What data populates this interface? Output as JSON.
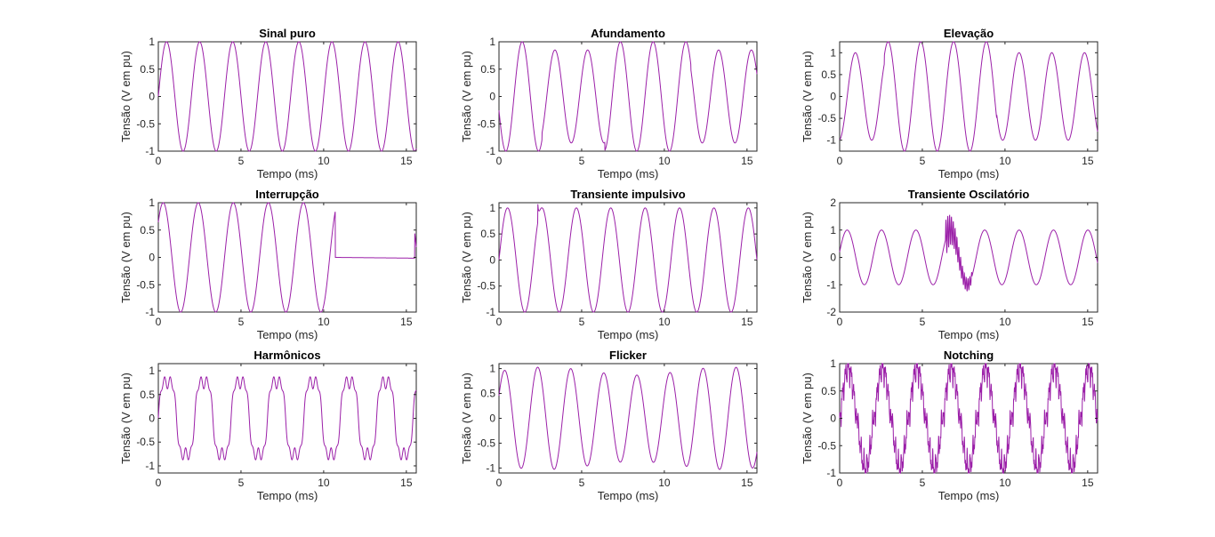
{
  "colors": {
    "trace": "#9b1fa8",
    "axis": "#262626",
    "background": "#ffffff"
  },
  "chart_data": [
    {
      "type": "line",
      "title": "Sinal puro",
      "kind": "puro",
      "xlabel": "Tempo (ms)",
      "ylabel": "Tensão (V em pu)",
      "xlim": [
        0,
        15.6
      ],
      "ylim": [
        -1,
        1
      ],
      "xticks": [
        0,
        5,
        10,
        15
      ],
      "yticks": [
        -1,
        -0.5,
        0,
        0.5,
        1
      ],
      "ytick_labels": [
        "-1",
        "-0.5",
        "0",
        "0.5",
        "1"
      ],
      "cycle_ms": 2.0,
      "amplitude": 1.0
    },
    {
      "type": "line",
      "title": "Afundamento",
      "kind": "afundamento",
      "xlabel": "Tempo (ms)",
      "ylabel": "Tensão (V em pu)",
      "xlim": [
        0,
        15.6
      ],
      "ylim": [
        -1,
        1
      ],
      "xticks": [
        0,
        5,
        10,
        15
      ],
      "yticks": [
        -1,
        -0.5,
        0,
        0.5,
        1
      ],
      "ytick_labels": [
        "-1",
        "-0.5",
        "0",
        "0.5",
        "1"
      ],
      "cycle_ms": 1.98,
      "amplitude": 1.0,
      "sag_amplitude": 0.85
    },
    {
      "type": "line",
      "title": "Elevação",
      "kind": "elevacao",
      "xlabel": "Tempo (ms)",
      "ylabel": "Tensão (V em pu)",
      "xlim": [
        0,
        15.6
      ],
      "ylim": [
        -1.25,
        1.25
      ],
      "xticks": [
        0,
        5,
        10,
        15
      ],
      "yticks": [
        -1,
        -0.5,
        0,
        0.5,
        1
      ],
      "ytick_labels": [
        "-1",
        "-0.5",
        "0",
        "0.5",
        "1"
      ],
      "cycle_ms": 1.98,
      "amplitude": 1.0,
      "swell_amplitude": 1.25
    },
    {
      "type": "line",
      "title": "Interrupção",
      "kind": "interrupcao",
      "xlabel": "Tempo (ms)",
      "ylabel": "Tensão (V em pu)",
      "xlim": [
        0,
        15.6
      ],
      "ylim": [
        -1,
        1
      ],
      "xticks": [
        0,
        5,
        10,
        15
      ],
      "yticks": [
        -1,
        -0.5,
        0,
        0.5,
        1
      ],
      "ytick_labels": [
        "-1",
        "-0.5",
        "0",
        "0.5",
        "1"
      ],
      "cycle_ms": 2.12,
      "amplitude": 1.0,
      "interruption_ms": [
        10.7,
        15.5
      ]
    },
    {
      "type": "line",
      "title": "Transiente impulsivo",
      "kind": "impulsivo",
      "xlabel": "Tempo (ms)",
      "ylabel": "Tensão (V em pu)",
      "xlim": [
        0,
        15.6
      ],
      "ylim": [
        -1,
        1.1
      ],
      "xticks": [
        0,
        5,
        10,
        15
      ],
      "yticks": [
        -1,
        -0.5,
        0,
        0.5,
        1
      ],
      "ytick_labels": [
        "-1",
        "-0.5",
        "0",
        "0.5",
        "1"
      ],
      "cycle_ms": 2.08,
      "amplitude": 1.0,
      "impulse_ms": 2.35
    },
    {
      "type": "line",
      "title": "Transiente Oscilatório",
      "kind": "oscilatorio",
      "xlabel": "Tempo (ms)",
      "ylabel": "Tensão (V em pu)",
      "xlim": [
        0,
        15.6
      ],
      "ylim": [
        -2,
        2
      ],
      "xticks": [
        0,
        5,
        10,
        15
      ],
      "yticks": [
        -2,
        -1,
        0,
        1,
        2
      ],
      "ytick_labels": [
        "-2",
        "-1",
        "0",
        "1",
        "2"
      ],
      "cycle_ms": 2.08,
      "amplitude": 1.0,
      "transient_ms": [
        6.4,
        8.0
      ]
    },
    {
      "type": "line",
      "title": "Harmônicos",
      "kind": "harmonicos",
      "xlabel": "Tempo (ms)",
      "ylabel": "Tensão (V em pu)",
      "xlim": [
        0,
        15.6
      ],
      "ylim": [
        -1.15,
        1.15
      ],
      "xticks": [
        0,
        5,
        10,
        15
      ],
      "yticks": [
        -1,
        -0.5,
        0,
        0.5,
        1
      ],
      "ytick_labels": [
        "-1",
        "-0.5",
        "0",
        "0.5",
        "1"
      ],
      "cycle_ms": 2.2,
      "amplitude": 1.0
    },
    {
      "type": "line",
      "title": "Flicker",
      "kind": "flicker",
      "xlabel": "Tempo (ms)",
      "ylabel": "Tensão (V em pu)",
      "xlim": [
        0,
        15.6
      ],
      "ylim": [
        -1.1,
        1.1
      ],
      "xticks": [
        0,
        5,
        10,
        15
      ],
      "yticks": [
        -1,
        -0.5,
        0,
        0.5,
        1
      ],
      "ytick_labels": [
        "-1",
        "-0.5",
        "0",
        "0.5",
        "1"
      ],
      "cycle_ms": 2.0,
      "amplitude": 1.0
    },
    {
      "type": "line",
      "title": "Notching",
      "kind": "notching",
      "xlabel": "Tempo (ms)",
      "ylabel": "Tensão (V em pu)",
      "xlim": [
        0,
        15.6
      ],
      "ylim": [
        -1,
        1
      ],
      "xticks": [
        0,
        5,
        10,
        15
      ],
      "yticks": [
        -1,
        -0.5,
        0,
        0.5,
        1
      ],
      "ytick_labels": [
        "-1",
        "-0.5",
        "0",
        "0.5",
        "1"
      ],
      "cycle_ms": 2.08,
      "amplitude": 1.0
    }
  ]
}
